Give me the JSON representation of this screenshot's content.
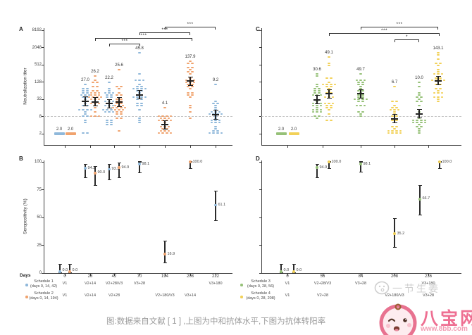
{
  "caption": "图:数据来自文献 [ 1 ] ,上图为中和抗体水平,下图为抗体转阳率",
  "watermarks": {
    "ginger_text": "一节生姜",
    "logo_name": "八宝网",
    "logo_url": "www.8bb.com"
  },
  "colors": {
    "schedule1": "#8fb8da",
    "schedule2": "#f0a36e",
    "schedule3": "#96c178",
    "schedule4": "#f2d158",
    "mean_bar": "#222222",
    "threshold": "#c4c4c4",
    "axis": "#3c3c3c",
    "caption": "#9b9b9b",
    "watermark_pink": "#ee6f92",
    "watermark_gray": "#cfcfcf"
  },
  "panels": {
    "A": {
      "label": "A",
      "ylabel": "Neutralization titer"
    },
    "B": {
      "label": "B",
      "ylabel": "Seropositivity (%)",
      "xlabel": "Days"
    },
    "C": {
      "label": "C"
    },
    "D": {
      "label": "D"
    }
  },
  "legend_left": {
    "days_header": "Days",
    "days": [
      "0",
      "28",
      "42",
      "70",
      "194",
      "208",
      "222"
    ],
    "rows": [
      {
        "series": "schedule1",
        "name": "Schedule 1",
        "sub": "(days 0, 14, 42)",
        "cells": [
          "V1",
          "V2+14",
          "V2+28/V3",
          "V3+28",
          "",
          "",
          "V3+180"
        ]
      },
      {
        "series": "schedule2",
        "name": "Schedule 2",
        "sub": "(days 0, 14, 194)",
        "cells": [
          "V1",
          "V2+14",
          "V2+28",
          "",
          "V2+180/V3",
          "V3+14",
          ""
        ]
      }
    ]
  },
  "legend_right": {
    "days": [
      "0",
      "56",
      "84",
      "208",
      "236"
    ],
    "rows": [
      {
        "series": "schedule3",
        "name": "Schedule 3",
        "sub": "(days 0, 28, 56)",
        "cells": [
          "V1",
          "V2+28/V3",
          "V3+28",
          "",
          "V3+180"
        ]
      },
      {
        "series": "schedule4",
        "name": "Schedule 4",
        "sub": "(days 0, 28, 208)",
        "cells": [
          "V1",
          "V2+28",
          "",
          "V2+180/V3",
          "V3+28"
        ]
      }
    ]
  },
  "chart_data": [
    {
      "panel": "A",
      "type": "scatter",
      "ylabel": "Neutralization titer",
      "yticks": [
        2,
        8,
        32,
        128,
        512,
        2048,
        8192
      ],
      "threshold": 8,
      "days": [
        0,
        28,
        42,
        70,
        194,
        208,
        222
      ],
      "columns": [
        {
          "day": 0,
          "series": "schedule1",
          "xoff": -8,
          "gmt": 2.0,
          "label": "2.0",
          "flat": true
        },
        {
          "day": 0,
          "series": "schedule2",
          "xoff": 8,
          "gmt": 2.0,
          "label": "2.0",
          "flat": true
        },
        {
          "day": 28,
          "series": "schedule1",
          "xoff": -7,
          "gmt": 27.0,
          "label": "27.0",
          "n": 30,
          "spread": 1.5
        },
        {
          "day": 28,
          "series": "schedule2",
          "xoff": 7,
          "gmt": 26.2,
          "label": "26.2",
          "n": 30,
          "spread": 1.6
        },
        {
          "day": 42,
          "series": "schedule1",
          "xoff": -7,
          "gmt": 22.2,
          "label": "22.2",
          "n": 30,
          "spread": 1.4
        },
        {
          "day": 42,
          "series": "schedule2",
          "xoff": 7,
          "gmt": 25.6,
          "label": "25.6",
          "n": 30,
          "spread": 1.4
        },
        {
          "day": 70,
          "series": "schedule1",
          "xoff": 0,
          "gmt": 45.8,
          "label": "45.8",
          "n": 30,
          "spread": 1.6
        },
        {
          "day": 194,
          "series": "schedule2",
          "xoff": 0,
          "gmt": 4.1,
          "label": "4.1",
          "n": 26,
          "spread": 1.6
        },
        {
          "day": 208,
          "series": "schedule2",
          "xoff": 0,
          "gmt": 137.9,
          "label": "137.9",
          "n": 30,
          "spread": 1.6
        },
        {
          "day": 222,
          "series": "schedule1",
          "xoff": 0,
          "gmt": 9.2,
          "label": "9.2",
          "n": 30,
          "spread": 1.5
        }
      ],
      "significance": [
        {
          "d1": 194,
          "o1": 0,
          "d2": 222,
          "o2": 0,
          "label": "***",
          "level": 0
        },
        {
          "d1": 70,
          "o1": 0,
          "d2": 208,
          "o2": 0,
          "label": "***",
          "level": 1
        },
        {
          "d1": 28,
          "o1": 7,
          "d2": 208,
          "o2": 3,
          "label": "***",
          "level": 2
        },
        {
          "d1": 42,
          "o1": -7,
          "d2": 70,
          "o2": 1,
          "label": "***",
          "level": 3
        }
      ]
    },
    {
      "panel": "B",
      "type": "scatter-ci",
      "ylabel": "Seropositivity (%)",
      "xlabel": "Days",
      "yticks": [
        0,
        25,
        50,
        75,
        100
      ],
      "days": [
        0,
        28,
        42,
        70,
        194,
        208,
        222
      ],
      "points": [
        {
          "day": 0,
          "series": "schedule1",
          "xoff": -7,
          "value": 0.0,
          "label": "0.0",
          "ci": [
            0,
            8
          ]
        },
        {
          "day": 0,
          "series": "schedule2",
          "xoff": 7,
          "value": 0.0,
          "label": "0.0",
          "ci": [
            0,
            8
          ]
        },
        {
          "day": 28,
          "series": "schedule1",
          "xoff": -7,
          "value": 94.3,
          "label": "94.3",
          "ci": [
            86,
            98
          ]
        },
        {
          "day": 28,
          "series": "schedule2",
          "xoff": 7,
          "value": 90.0,
          "label": "90.0",
          "ci": [
            79,
            96
          ]
        },
        {
          "day": 42,
          "series": "schedule1",
          "xoff": -7,
          "value": 93.3,
          "label": "93.3",
          "ci": [
            84,
            98
          ]
        },
        {
          "day": 42,
          "series": "schedule2",
          "xoff": 7,
          "value": 94.9,
          "label": "94.9",
          "ci": [
            86,
            99
          ]
        },
        {
          "day": 70,
          "series": "schedule1",
          "xoff": 0,
          "value": 98.1,
          "label": "98.1",
          "ci": [
            90,
            100
          ]
        },
        {
          "day": 194,
          "series": "schedule2",
          "xoff": 0,
          "value": 16.9,
          "label": "16.9",
          "ci": [
            9,
            29
          ]
        },
        {
          "day": 208,
          "series": "schedule2",
          "xoff": 0,
          "value": 100.0,
          "label": "100.0",
          "ci": [
            94,
            100
          ]
        },
        {
          "day": 222,
          "series": "schedule1",
          "xoff": 0,
          "value": 61.1,
          "label": "61.1",
          "ci": [
            47,
            74
          ]
        }
      ]
    },
    {
      "panel": "C",
      "type": "scatter",
      "yticks": [
        2,
        8,
        32,
        128,
        512,
        2048,
        8192
      ],
      "threshold": 8,
      "days": [
        0,
        56,
        84,
        208,
        236
      ],
      "columns": [
        {
          "day": 0,
          "series": "schedule3",
          "xoff": -9,
          "gmt": 2.0,
          "label": "2.0",
          "flat": true
        },
        {
          "day": 0,
          "series": "schedule4",
          "xoff": 9,
          "gmt": 2.0,
          "label": "2.0",
          "flat": true
        },
        {
          "day": 56,
          "series": "schedule3",
          "xoff": -8,
          "gmt": 30.6,
          "label": "30.6",
          "n": 30,
          "spread": 1.5
        },
        {
          "day": 56,
          "series": "schedule4",
          "xoff": 9,
          "gmt": 49.1,
          "label": "49.1",
          "n": 30,
          "spread": 1.5
        },
        {
          "day": 84,
          "series": "schedule3",
          "xoff": 0,
          "gmt": 49.7,
          "label": "49.7",
          "n": 30,
          "spread": 1.5
        },
        {
          "day": 208,
          "series": "schedule4",
          "xoff": 0,
          "gmt": 6.7,
          "label": "6.7",
          "n": 26,
          "spread": 1.7
        },
        {
          "day": 236,
          "series": "schedule3",
          "xoff": -13,
          "gmt": 10.0,
          "label": "10.0",
          "n": 28,
          "spread": 1.7
        },
        {
          "day": 236,
          "series": "schedule4",
          "xoff": 14,
          "gmt": 143.1,
          "label": "143.1",
          "n": 30,
          "spread": 1.5
        }
      ],
      "significance": [
        {
          "d1": 84,
          "o1": 0,
          "d2": 236,
          "o2": 14,
          "label": "***",
          "level": 0
        },
        {
          "d1": 56,
          "o1": 9,
          "d2": 236,
          "o2": 16,
          "label": "***",
          "level": 1
        },
        {
          "d1": 208,
          "o1": 0,
          "d2": 236,
          "o2": -13,
          "label": "*",
          "level": 2
        }
      ]
    },
    {
      "panel": "D",
      "type": "scatter-ci",
      "yticks": [
        0,
        25,
        50,
        75,
        100
      ],
      "days": [
        0,
        56,
        84,
        208,
        236
      ],
      "points": [
        {
          "day": 0,
          "series": "schedule3",
          "xoff": -9,
          "value": 0.0,
          "label": "0.0",
          "ci": [
            0,
            8
          ]
        },
        {
          "day": 0,
          "series": "schedule4",
          "xoff": 9,
          "value": 0.0,
          "label": "0.0",
          "ci": [
            0,
            8
          ]
        },
        {
          "day": 56,
          "series": "schedule3",
          "xoff": -8,
          "value": 94.9,
          "label": "94.9",
          "ci": [
            86,
            98
          ]
        },
        {
          "day": 56,
          "series": "schedule4",
          "xoff": 9,
          "value": 100.0,
          "label": "100.0",
          "ci": [
            94,
            100
          ]
        },
        {
          "day": 84,
          "series": "schedule3",
          "xoff": 0,
          "value": 98.1,
          "label": "98.1",
          "ci": [
            91,
            100
          ]
        },
        {
          "day": 208,
          "series": "schedule4",
          "xoff": 0,
          "value": 35.2,
          "label": "35.2",
          "ci": [
            23,
            49
          ]
        },
        {
          "day": 236,
          "series": "schedule3",
          "xoff": -12,
          "value": 66.7,
          "label": "66.7",
          "ci": [
            52,
            79
          ]
        },
        {
          "day": 236,
          "series": "schedule4",
          "xoff": 16,
          "value": 100.0,
          "label": "100.0",
          "ci": [
            94,
            100
          ]
        }
      ]
    }
  ]
}
